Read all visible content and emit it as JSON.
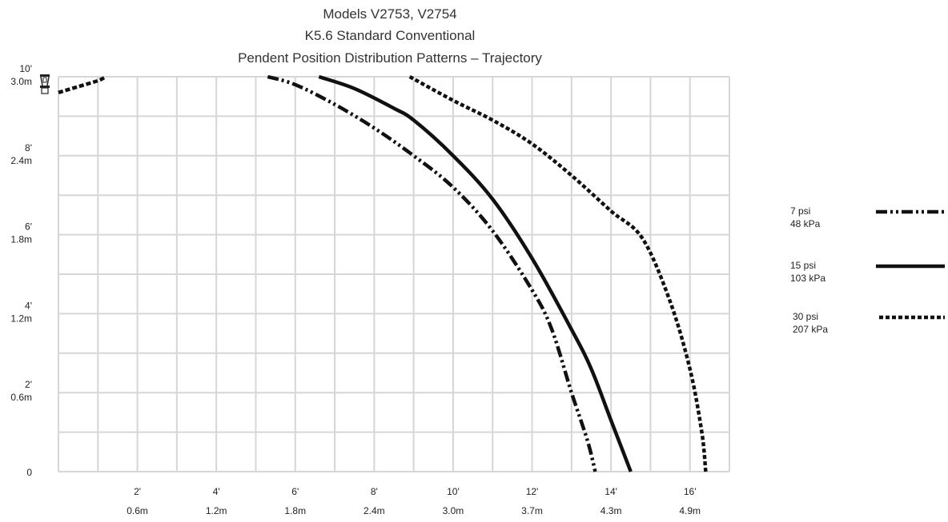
{
  "chart_data": {
    "type": "line",
    "title": [
      "Models V2753, V2754",
      "K5.6 Standard Conventional",
      "Pendent Position Distribution Patterns – Trajectory"
    ],
    "xlim": [
      0,
      17
    ],
    "ylim": [
      0,
      10
    ],
    "x_ticks": [
      {
        "value": 2,
        "ft": "2'",
        "m": "0.6m"
      },
      {
        "value": 4,
        "ft": "4'",
        "m": "1.2m"
      },
      {
        "value": 6,
        "ft": "6'",
        "m": "1.8m"
      },
      {
        "value": 8,
        "ft": "8'",
        "m": "2.4m"
      },
      {
        "value": 10,
        "ft": "10'",
        "m": "3.0m"
      },
      {
        "value": 12,
        "ft": "12'",
        "m": "3.7m"
      },
      {
        "value": 14,
        "ft": "14'",
        "m": "4.3m"
      },
      {
        "value": 16,
        "ft": "16'",
        "m": "4.9m"
      }
    ],
    "y_ticks": [
      {
        "value": 10,
        "ft": "10'",
        "m": "3.0m"
      },
      {
        "value": 8,
        "ft": "8'",
        "m": "2.4m"
      },
      {
        "value": 6,
        "ft": "6'",
        "m": "1.8m"
      },
      {
        "value": 4,
        "ft": "4'",
        "m": "1.2m"
      },
      {
        "value": 2,
        "ft": "2'",
        "m": "0.6m"
      },
      {
        "value": 0,
        "ft": "0",
        "m": ""
      }
    ],
    "grid": true,
    "legend_position": "right",
    "series": [
      {
        "name": "7 psi",
        "name_metric": "48 kPa",
        "dash": "14 4 3 4 3 4",
        "points": [
          [
            5.3,
            10
          ],
          [
            6.0,
            9.8
          ],
          [
            7.0,
            9.3
          ],
          [
            8.0,
            8.7
          ],
          [
            9.0,
            8.0
          ],
          [
            10.0,
            7.2
          ],
          [
            11.0,
            6.1
          ],
          [
            12.0,
            4.6
          ],
          [
            12.5,
            3.6
          ],
          [
            13.0,
            2.0
          ],
          [
            13.4,
            0.8
          ],
          [
            13.6,
            0
          ]
        ]
      },
      {
        "name": "15 psi",
        "name_metric": "103 kPa",
        "dash": "",
        "points": [
          [
            6.6,
            10
          ],
          [
            7.5,
            9.7
          ],
          [
            8.5,
            9.2
          ],
          [
            9.0,
            8.9
          ],
          [
            10.0,
            8.0
          ],
          [
            11.0,
            6.9
          ],
          [
            12.0,
            5.4
          ],
          [
            13.0,
            3.6
          ],
          [
            13.5,
            2.6
          ],
          [
            14.0,
            1.3
          ],
          [
            14.5,
            0
          ]
        ]
      },
      {
        "name": "30 psi",
        "name_metric": "207 kPa",
        "dash": "5 3",
        "points": [
          [
            8.9,
            10
          ],
          [
            10.0,
            9.4
          ],
          [
            11.0,
            8.9
          ],
          [
            12.0,
            8.3
          ],
          [
            13.0,
            7.5
          ],
          [
            14.0,
            6.6
          ],
          [
            14.8,
            5.9
          ],
          [
            15.5,
            4.3
          ],
          [
            16.0,
            2.6
          ],
          [
            16.3,
            1.0
          ],
          [
            16.4,
            0
          ]
        ]
      },
      {
        "name": "",
        "name_metric": "",
        "dash": "6 3",
        "points": [
          [
            0,
            9.6
          ],
          [
            0.5,
            9.75
          ],
          [
            1.0,
            9.9
          ],
          [
            1.2,
            10
          ]
        ]
      }
    ]
  }
}
